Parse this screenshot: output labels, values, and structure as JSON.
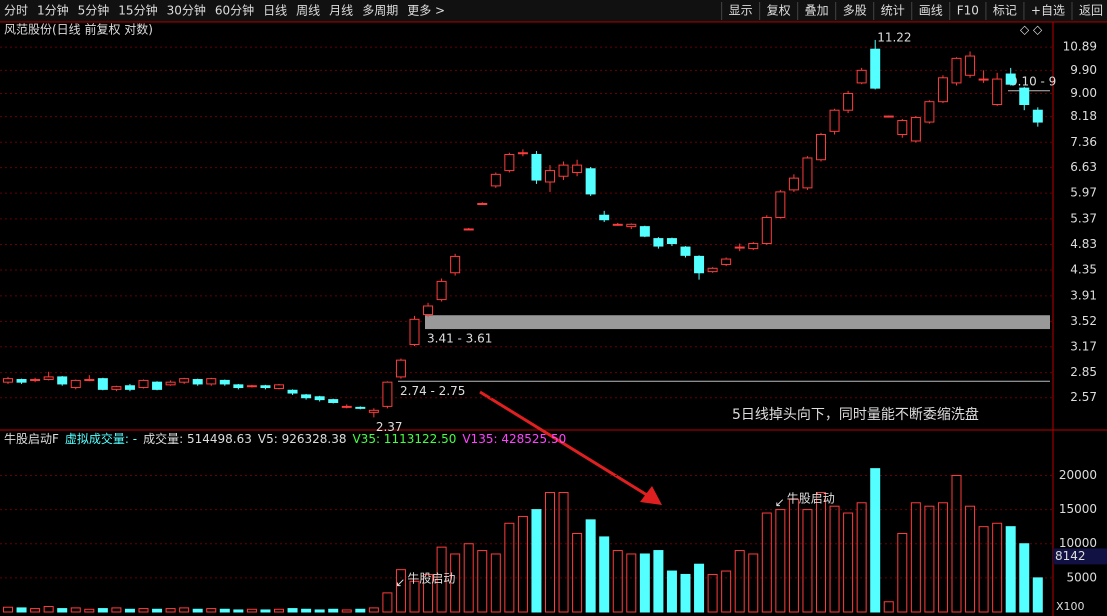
{
  "toolbar": {
    "left": [
      "分时",
      "1分钟",
      "5分钟",
      "15分钟",
      "30分钟",
      "60分钟",
      "日线",
      "周线",
      "月线",
      "多周期",
      "更多 >"
    ],
    "right": [
      "显示",
      "复权",
      "叠加",
      "多股",
      "统计",
      "画线",
      "F10",
      "标记",
      "+自选",
      "返回"
    ]
  },
  "header": "风范股份(日线 前复权 对数)",
  "volume_header": {
    "name": "牛股启动F",
    "virtual": "虚拟成交量: -",
    "volume": "成交量: 514498.63",
    "v5": "V5: 926328.38",
    "v35": "V35: 1113122.50",
    "v135": "V135: 428525.50"
  },
  "chart_data": [
    {
      "type": "candlestick",
      "log_scale": true,
      "grid": true,
      "up_color": "#ff3c3c",
      "down_color": "#54ffff",
      "open": [
        2.74,
        2.77,
        2.76,
        2.77,
        2.8,
        2.68,
        2.77,
        2.78,
        2.66,
        2.7,
        2.68,
        2.74,
        2.71,
        2.74,
        2.77,
        2.72,
        2.76,
        2.71,
        2.7,
        2.7,
        2.67,
        2.65,
        2.6,
        2.58,
        2.55,
        2.47,
        2.47,
        2.42,
        2.48,
        2.8,
        3.2,
        3.62,
        3.85,
        4.3,
        5.15,
        5.72,
        6.15,
        6.55,
        7.05,
        7.0,
        6.25,
        6.4,
        6.5,
        6.6,
        5.45,
        5.25,
        5.2,
        5.2,
        4.95,
        4.95,
        4.78,
        4.6,
        4.32,
        4.45,
        4.78,
        4.75,
        4.85,
        5.4,
        6.05,
        6.1,
        6.85,
        7.7,
        8.4,
        9.4,
        10.8,
        8.2,
        7.6,
        7.4,
        8.0,
        8.7,
        9.4,
        9.7,
        9.55,
        8.6,
        9.75,
        9.2,
        8.4
      ],
      "close": [
        2.78,
        2.74,
        2.77,
        2.8,
        2.72,
        2.76,
        2.77,
        2.66,
        2.69,
        2.66,
        2.76,
        2.66,
        2.74,
        2.78,
        2.72,
        2.78,
        2.72,
        2.68,
        2.7,
        2.68,
        2.71,
        2.62,
        2.57,
        2.55,
        2.52,
        2.48,
        2.46,
        2.44,
        2.74,
        3.0,
        3.55,
        3.75,
        4.15,
        4.6,
        5.15,
        5.72,
        6.45,
        7.0,
        7.05,
        6.3,
        6.55,
        6.7,
        6.7,
        5.95,
        5.35,
        5.25,
        5.25,
        5.0,
        4.8,
        4.85,
        4.62,
        4.3,
        4.38,
        4.55,
        4.78,
        4.85,
        5.4,
        6.0,
        6.35,
        6.9,
        7.6,
        8.4,
        9.0,
        9.9,
        9.2,
        8.2,
        8.05,
        8.15,
        8.7,
        9.6,
        10.4,
        10.5,
        9.55,
        9.55,
        9.35,
        8.6,
        8.0
      ],
      "high": [
        2.8,
        2.78,
        2.79,
        2.86,
        2.81,
        2.77,
        2.82,
        2.79,
        2.7,
        2.72,
        2.77,
        2.75,
        2.76,
        2.79,
        2.78,
        2.79,
        2.77,
        2.72,
        2.71,
        2.71,
        2.72,
        2.66,
        2.61,
        2.59,
        2.56,
        2.5,
        2.48,
        2.46,
        2.75,
        3.02,
        3.6,
        3.8,
        4.2,
        4.65,
        5.17,
        5.75,
        6.5,
        7.05,
        7.15,
        7.1,
        6.7,
        6.8,
        6.85,
        6.65,
        5.55,
        5.28,
        5.27,
        5.22,
        4.98,
        4.97,
        4.8,
        4.62,
        4.4,
        4.58,
        4.85,
        4.88,
        5.45,
        6.05,
        6.45,
        6.95,
        7.65,
        8.45,
        9.1,
        10.0,
        11.22,
        8.22,
        8.1,
        8.2,
        8.75,
        9.7,
        10.45,
        10.7,
        9.9,
        9.8,
        10.0,
        9.25,
        8.5
      ],
      "low": [
        2.72,
        2.72,
        2.74,
        2.76,
        2.7,
        2.66,
        2.75,
        2.65,
        2.64,
        2.64,
        2.67,
        2.65,
        2.7,
        2.72,
        2.7,
        2.7,
        2.7,
        2.66,
        2.68,
        2.66,
        2.66,
        2.6,
        2.55,
        2.53,
        2.51,
        2.46,
        2.45,
        2.37,
        2.46,
        2.78,
        3.18,
        3.58,
        3.82,
        4.25,
        5.12,
        5.7,
        6.1,
        6.5,
        6.95,
        6.2,
        6.0,
        6.3,
        6.4,
        5.9,
        5.3,
        5.22,
        5.15,
        4.98,
        4.75,
        4.8,
        4.58,
        4.18,
        4.3,
        4.42,
        4.7,
        4.72,
        4.82,
        5.38,
        6.0,
        6.05,
        6.8,
        7.6,
        8.3,
        9.35,
        9.15,
        8.18,
        7.5,
        7.35,
        7.95,
        8.65,
        9.3,
        9.6,
        9.4,
        8.55,
        9.3,
        8.4,
        7.85
      ],
      "ylim": [
        2.25,
        11.31
      ],
      "yticks": [
        2.57,
        2.85,
        3.17,
        3.52,
        3.91,
        4.35,
        4.83,
        5.37,
        5.97,
        6.63,
        7.36,
        8.18,
        {
          "value": 9.0,
          "label": "9.00"
        },
        {
          "value": 9.9,
          "label": "9.90"
        },
        10.89
      ],
      "band": {
        "from": 3.41,
        "to": 3.61,
        "label": "3.41 - 3.61"
      },
      "level": {
        "from": 2.74,
        "to": 2.75,
        "label": "2.74 - 2.75"
      },
      "level2": {
        "value": 9.1,
        "label": "9.10 - 9"
      },
      "high_label": "11.22",
      "low_label": "2.37",
      "annotation": "5日线掉头向下，同时量能不断委缩洗盘"
    },
    {
      "type": "volume",
      "values": [
        700,
        600,
        500,
        800,
        500,
        600,
        400,
        500,
        600,
        400,
        500,
        400,
        500,
        600,
        400,
        500,
        400,
        300,
        400,
        300,
        400,
        500,
        400,
        300,
        400,
        300,
        400,
        600,
        2800,
        6200,
        4500,
        5500,
        9500,
        8500,
        10000,
        9000,
        8500,
        13000,
        14000,
        15000,
        17500,
        17500,
        11500,
        13500,
        11000,
        9000,
        8500,
        8500,
        9000,
        6000,
        5500,
        7000,
        5500,
        6000,
        9000,
        8500,
        14500,
        15000,
        16500,
        15000,
        17500,
        15500,
        14500,
        16000,
        21000,
        1500,
        11500,
        16000,
        15500,
        16000,
        20000,
        15500,
        12500,
        13000,
        12500,
        10000,
        5000
      ],
      "ylim": [
        0,
        23000
      ],
      "yticks": [
        5000,
        10000,
        15000,
        20000
      ],
      "signal_label": "牛股启动",
      "current": 8142,
      "unit": "X100"
    }
  ]
}
